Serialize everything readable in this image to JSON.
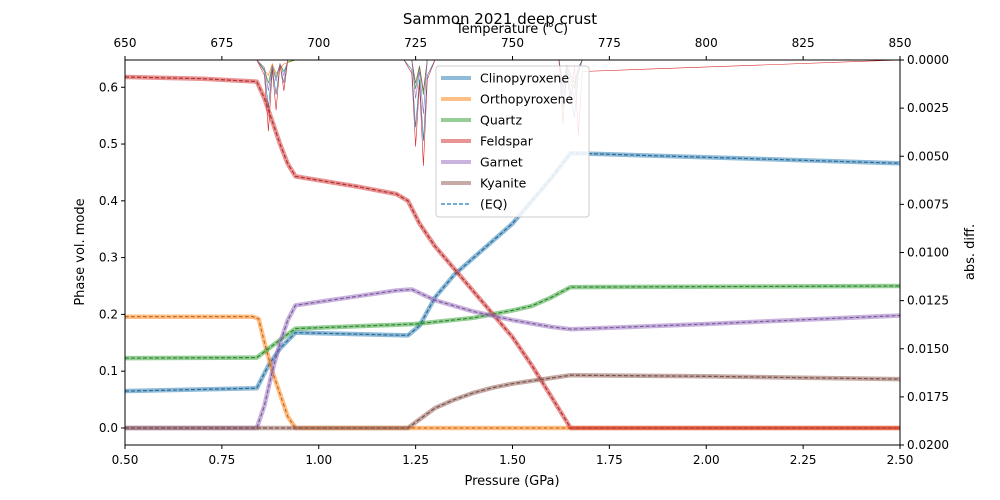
{
  "chart_data": {
    "type": "line",
    "title": "Sammon 2021 deep crust",
    "xlabel": "Pressure (GPa)",
    "ylabel": "Phase vol. mode",
    "y2label": "abs. diff.",
    "top_xlabel": "Temperature (°C)",
    "xlim": [
      0.5,
      2.5
    ],
    "ylim": [
      -0.03,
      0.648
    ],
    "y2lim": [
      0.02,
      0.0
    ],
    "y2_inverted": true,
    "top_xlim": [
      650,
      850
    ],
    "xticks": [
      "0.50",
      "0.75",
      "1.00",
      "1.25",
      "1.50",
      "1.75",
      "2.00",
      "2.25",
      "2.50"
    ],
    "yticks": [
      "0.0",
      "0.1",
      "0.2",
      "0.3",
      "0.4",
      "0.5",
      "0.6"
    ],
    "y2ticks": [
      "0.0000",
      "0.0025",
      "0.0050",
      "0.0075",
      "0.0100",
      "0.0125",
      "0.0150",
      "0.0175",
      "0.0200"
    ],
    "top_xticks": [
      "650",
      "675",
      "700",
      "725",
      "750",
      "775",
      "800",
      "825",
      "850"
    ],
    "grid": false,
    "legend_position": "upper center",
    "legend": [
      "Clinopyroxene",
      "Orthopyroxene",
      "Quartz",
      "Feldspar",
      "Garnet",
      "Kyanite",
      "(EQ)"
    ],
    "series": [
      {
        "name": "Clinopyroxene",
        "color": "#1f77b4",
        "x": [
          0.5,
          0.84,
          0.87,
          0.9,
          0.94,
          1.23,
          1.26,
          1.3,
          1.35,
          1.4,
          1.45,
          1.5,
          1.55,
          1.6,
          1.65,
          2.5
        ],
        "y": [
          0.065,
          0.07,
          0.11,
          0.14,
          0.168,
          0.163,
          0.18,
          0.23,
          0.27,
          0.3,
          0.33,
          0.36,
          0.4,
          0.44,
          0.484,
          0.466
        ]
      },
      {
        "name": "Orthopyroxene",
        "color": "#ff7f0e",
        "x": [
          0.5,
          0.83,
          0.845,
          0.86,
          0.88,
          0.9,
          0.92,
          0.94,
          2.5
        ],
        "y": [
          0.196,
          0.196,
          0.192,
          0.15,
          0.1,
          0.06,
          0.02,
          0.0,
          0.0
        ]
      },
      {
        "name": "Quartz",
        "color": "#2ca02c",
        "x": [
          0.5,
          0.84,
          0.9,
          0.94,
          1.25,
          1.4,
          1.5,
          1.55,
          1.6,
          1.65,
          2.5
        ],
        "y": [
          0.123,
          0.124,
          0.155,
          0.175,
          0.183,
          0.194,
          0.207,
          0.215,
          0.23,
          0.248,
          0.25
        ]
      },
      {
        "name": "Feldspar",
        "color": "#d62728",
        "x": [
          0.5,
          0.7,
          0.84,
          0.86,
          0.88,
          0.9,
          0.92,
          0.94,
          1.1,
          1.2,
          1.23,
          1.26,
          1.3,
          1.35,
          1.4,
          1.45,
          1.5,
          1.55,
          1.6,
          1.65,
          2.5
        ],
        "y": [
          0.618,
          0.615,
          0.61,
          0.58,
          0.54,
          0.5,
          0.465,
          0.443,
          0.425,
          0.412,
          0.4,
          0.36,
          0.32,
          0.28,
          0.24,
          0.2,
          0.16,
          0.11,
          0.055,
          0.0,
          0.0
        ]
      },
      {
        "name": "Garnet",
        "color": "#9467bd",
        "x": [
          0.5,
          0.84,
          0.86,
          0.88,
          0.9,
          0.92,
          0.94,
          1.0,
          1.1,
          1.2,
          1.24,
          1.3,
          1.4,
          1.5,
          1.6,
          1.65,
          2.0,
          2.5
        ],
        "y": [
          0.0,
          0.0,
          0.04,
          0.1,
          0.15,
          0.19,
          0.216,
          0.222,
          0.232,
          0.242,
          0.244,
          0.225,
          0.205,
          0.19,
          0.178,
          0.174,
          0.183,
          0.198
        ]
      },
      {
        "name": "Kyanite",
        "color": "#8c564b",
        "x": [
          0.5,
          1.23,
          1.26,
          1.3,
          1.35,
          1.4,
          1.45,
          1.5,
          1.55,
          1.6,
          1.65,
          2.0,
          2.5
        ],
        "y": [
          0.0,
          0.0,
          0.015,
          0.035,
          0.05,
          0.062,
          0.071,
          0.078,
          0.083,
          0.088,
          0.093,
          0.091,
          0.086
        ]
      }
    ],
    "diff_series": [
      {
        "name": "Clinopyroxene",
        "color": "#1f77b4",
        "x": [
          0.5,
          0.84,
          0.86,
          0.87,
          0.88,
          0.89,
          0.9,
          0.91,
          0.92,
          1.22,
          1.24,
          1.25,
          1.26,
          1.27,
          1.28,
          1.3,
          1.5,
          1.62,
          1.63,
          1.64,
          1.66,
          1.67,
          1.68,
          2.5
        ],
        "y": [
          0.0,
          0.0,
          0.0006,
          0.0025,
          0.0004,
          0.0018,
          0.0003,
          0.0012,
          0.0,
          0.0,
          0.0005,
          0.0035,
          0.001,
          0.0042,
          0.0008,
          0.0,
          0.0,
          0.0,
          0.0025,
          0.0005,
          0.003,
          0.0007,
          0.0,
          0.0
        ]
      },
      {
        "name": "Orthopyroxene",
        "color": "#ff7f0e",
        "x": [
          0.5,
          0.84,
          0.87,
          0.88,
          0.89,
          0.91,
          0.94,
          2.5
        ],
        "y": [
          0.0,
          0.0,
          0.0008,
          0.0002,
          0.0007,
          0.0002,
          0.0,
          0.0
        ]
      },
      {
        "name": "Quartz",
        "color": "#2ca02c",
        "x": [
          0.5,
          0.84,
          0.86,
          0.87,
          0.88,
          0.89,
          0.9,
          0.91,
          0.92,
          0.94,
          1.24,
          1.25,
          1.26,
          1.27,
          1.28,
          1.62,
          1.63,
          1.64,
          1.66,
          1.67,
          1.68,
          2.5
        ],
        "y": [
          0.0,
          0.0,
          0.0005,
          0.0012,
          0.0003,
          0.0009,
          0.0002,
          0.0006,
          0.0001,
          0.0,
          0.0,
          0.0015,
          0.0004,
          0.0018,
          0.0,
          0.0,
          0.0012,
          0.0003,
          0.0015,
          0.0004,
          0.0,
          0.0
        ]
      },
      {
        "name": "Feldspar",
        "color": "#d62728",
        "x": [
          0.5,
          0.84,
          0.86,
          0.87,
          0.88,
          0.89,
          0.9,
          0.91,
          0.92,
          1.22,
          1.24,
          1.25,
          1.26,
          1.27,
          1.28,
          1.3,
          1.62,
          1.63,
          1.64,
          1.65,
          1.66,
          1.67,
          1.68,
          2.5
        ],
        "y": [
          0.0,
          0.0,
          0.0008,
          0.0037,
          0.0005,
          0.0026,
          0.0002,
          0.0016,
          0.0,
          0.0,
          0.0007,
          0.0045,
          0.0012,
          0.0055,
          0.001,
          0.0,
          0.0,
          0.0033,
          0.0007,
          0.0022,
          0.0003,
          0.0039,
          0.0006,
          0.0
        ]
      },
      {
        "name": "Garnet",
        "color": "#9467bd",
        "x": [
          0.5,
          0.84,
          0.86,
          0.87,
          0.88,
          0.89,
          0.9,
          0.91,
          0.92,
          1.24,
          1.25,
          1.26,
          1.27,
          1.28,
          1.62,
          1.63,
          1.64,
          1.66,
          1.67,
          1.68,
          2.5
        ],
        "y": [
          0.0,
          0.0,
          0.0004,
          0.0016,
          0.0003,
          0.0011,
          0.0002,
          0.0008,
          0.0,
          0.0,
          0.002,
          0.0006,
          0.0028,
          0.0,
          0.0,
          0.0018,
          0.0004,
          0.002,
          0.0006,
          0.0,
          0.0
        ]
      },
      {
        "name": "Kyanite",
        "color": "#8c564b",
        "x": [
          0.5,
          1.24,
          1.25,
          1.26,
          1.27,
          1.28,
          1.62,
          1.63,
          1.64,
          1.66,
          1.67,
          1.68,
          2.5
        ],
        "y": [
          0.0,
          0.0,
          0.0012,
          0.0003,
          0.0016,
          0.0,
          0.0,
          0.0014,
          0.0003,
          0.0012,
          0.0004,
          0.0,
          0.0
        ]
      }
    ]
  }
}
